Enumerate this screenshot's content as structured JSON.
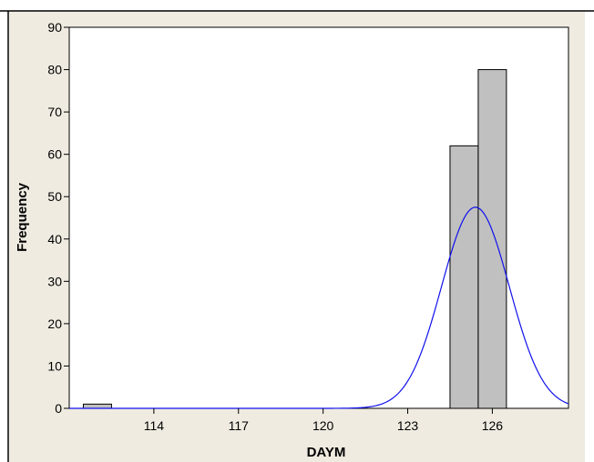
{
  "chart_data": {
    "type": "bar",
    "subtype": "histogram-with-normal-fit",
    "xlabel": "DAYM",
    "ylabel": "Frequency",
    "title": "",
    "xlim": [
      111,
      128.7
    ],
    "ylim": [
      0,
      90
    ],
    "x_ticks": [
      114,
      117,
      120,
      123,
      126
    ],
    "y_ticks": [
      0,
      10,
      20,
      30,
      40,
      50,
      60,
      70,
      80,
      90
    ],
    "bin_width": 1,
    "bins": [
      {
        "start": 111.5,
        "end": 112.5,
        "count": 1
      },
      {
        "start": 124.5,
        "end": 125.5,
        "count": 62
      },
      {
        "start": 125.5,
        "end": 126.5,
        "count": 80
      }
    ],
    "fit_curve": {
      "type": "normal",
      "mean": 125.4,
      "stdev": 1.2,
      "peak": 47.5,
      "color": "#1010ee"
    },
    "colors": {
      "bar_fill": "#c0c0c0",
      "bar_stroke": "#000000",
      "panel_background": "#efebe1",
      "plot_background": "#ffffff"
    },
    "grid": false,
    "legend": "none"
  }
}
